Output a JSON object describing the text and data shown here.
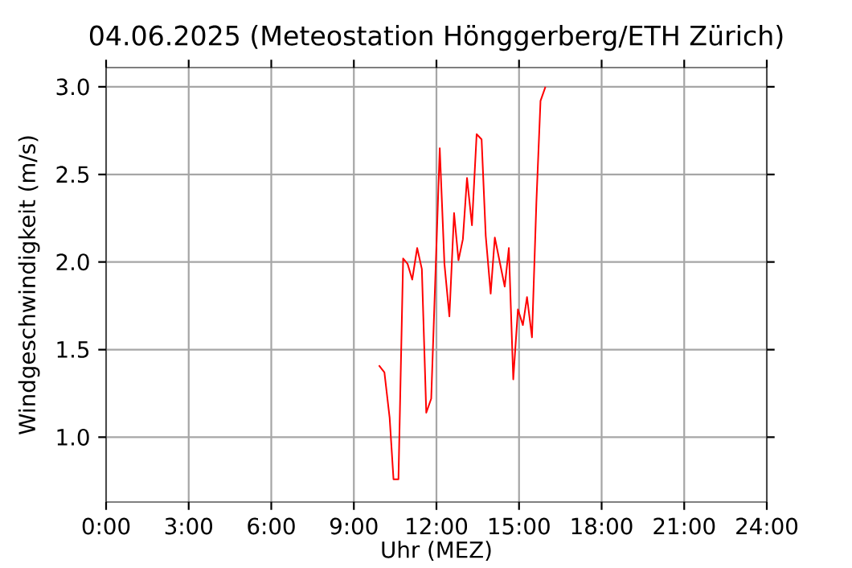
{
  "chart_data": {
    "type": "line",
    "title": "04.06.2025  (Meteostation Hönggerberg/ETH Zürich)",
    "xlabel": "Uhr (MEZ)",
    "ylabel": "Windgeschwindigkeit (m/s)",
    "xlim": [
      0,
      24
    ],
    "ylim": [
      0.63,
      3.11
    ],
    "xticks": [
      {
        "value": 0,
        "label": "0:00"
      },
      {
        "value": 3,
        "label": "3:00"
      },
      {
        "value": 6,
        "label": "6:00"
      },
      {
        "value": 9,
        "label": "9:00"
      },
      {
        "value": 12,
        "label": "12:00"
      },
      {
        "value": 15,
        "label": "15:00"
      },
      {
        "value": 18,
        "label": "18:00"
      },
      {
        "value": 21,
        "label": "21:00"
      },
      {
        "value": 24,
        "label": "24:00"
      }
    ],
    "yticks": [
      {
        "value": 1,
        "label": "1.0"
      },
      {
        "value": 1.5,
        "label": "1.5"
      },
      {
        "value": 2,
        "label": "2.0"
      },
      {
        "value": 2.5,
        "label": "2.5"
      },
      {
        "value": 3,
        "label": "3.0"
      }
    ],
    "grid": true,
    "marker": "none",
    "line_style": "solid",
    "series": [
      {
        "color": "#ff0000",
        "x": [
          9.91,
          10.11,
          10.3,
          10.44,
          10.62,
          10.79,
          10.95,
          11.12,
          11.3,
          11.47,
          11.63,
          11.81,
          12.12,
          12.29,
          12.47,
          12.64,
          12.8,
          12.96,
          13.11,
          13.29,
          13.46,
          13.64,
          13.79,
          13.97,
          14.12,
          14.3,
          14.48,
          14.63,
          14.79,
          14.96,
          15.14,
          15.29,
          15.47,
          15.63,
          15.78,
          15.96
        ],
        "values": [
          1.41,
          1.37,
          1.11,
          0.76,
          0.76,
          2.02,
          1.99,
          1.9,
          2.08,
          1.96,
          1.14,
          1.22,
          2.65,
          1.99,
          1.69,
          2.28,
          2.01,
          2.13,
          2.48,
          2.21,
          2.73,
          2.7,
          2.15,
          1.82,
          2.14,
          2.0,
          1.86,
          2.08,
          1.33,
          1.73,
          1.64,
          1.8,
          1.57,
          2.34,
          2.92,
          3.0
        ]
      }
    ]
  }
}
